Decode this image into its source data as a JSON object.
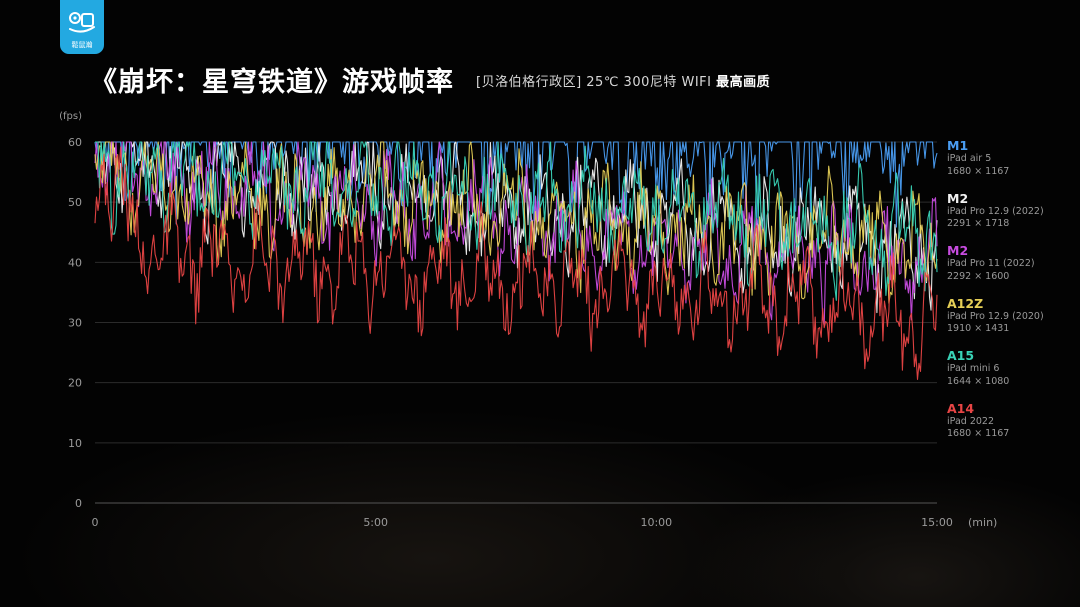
{
  "logo": {
    "text": "鬆鼠瀚"
  },
  "title": "《崩坏：星穹铁道》游戏帧率",
  "subtitle": {
    "main": "[贝洛伯格行政区] 25℃ 300尼特 WIFI",
    "emph": "最高画质"
  },
  "chart_data": {
    "type": "line",
    "title": "《崩坏：星穹铁道》游戏帧率",
    "ylabel": "(fps)",
    "xlabel": "(min)",
    "ylim": [
      0,
      60
    ],
    "xlim": [
      0,
      15
    ],
    "yticks": [
      "0",
      "10",
      "20",
      "30",
      "40",
      "50",
      "60"
    ],
    "xticks": [
      "0",
      "5:00",
      "10:00",
      "15:00"
    ],
    "grid": true,
    "legend_position": "right",
    "series": [
      {
        "name": "M1",
        "device": "iPad air 5",
        "resolution": "1680 × 1167",
        "color": "#4a9df2",
        "x": [
          0,
          1,
          2,
          3,
          4,
          5,
          6,
          7,
          8,
          9,
          10,
          11,
          12,
          13,
          14,
          15
        ],
        "values": [
          60,
          57,
          58,
          59,
          56,
          58,
          57,
          58,
          56,
          58,
          55,
          57,
          56,
          55,
          57,
          58
        ]
      },
      {
        "name": "M2",
        "device": "iPad Pro 12.9 (2022)",
        "resolution": "2291 × 1718",
        "color": "#f2f2f2",
        "x": [
          0,
          1,
          2,
          3,
          4,
          5,
          6,
          7,
          8,
          9,
          10,
          11,
          12,
          13,
          14,
          15
        ],
        "values": [
          59,
          56,
          55,
          54,
          52,
          53,
          50,
          51,
          48,
          49,
          47,
          46,
          44,
          45,
          43,
          42
        ]
      },
      {
        "name": "M2",
        "device": "iPad Pro 11 (2022)",
        "resolution": "2292 × 1600",
        "color": "#c84ce0",
        "x": [
          0,
          1,
          2,
          3,
          4,
          5,
          6,
          7,
          8,
          9,
          10,
          11,
          12,
          13,
          14,
          15
        ],
        "values": [
          58,
          55,
          54,
          52,
          51,
          50,
          49,
          48,
          46,
          45,
          44,
          43,
          42,
          41,
          40,
          40
        ]
      },
      {
        "name": "A12Z",
        "device": "iPad Pro 12.9 (2020)",
        "resolution": "1910 × 1431",
        "color": "#e6cf56",
        "x": [
          0,
          1,
          2,
          3,
          4,
          5,
          6,
          7,
          8,
          9,
          10,
          11,
          12,
          13,
          14,
          15
        ],
        "values": [
          58,
          52,
          51,
          50,
          49,
          52,
          50,
          49,
          48,
          47,
          46,
          45,
          44,
          44,
          43,
          42
        ]
      },
      {
        "name": "A15",
        "device": "iPad mini 6",
        "resolution": "1644 × 1080",
        "color": "#39d3b7",
        "x": [
          0,
          1,
          2,
          3,
          4,
          5,
          6,
          7,
          8,
          9,
          10,
          11,
          12,
          13,
          14,
          15
        ],
        "values": [
          56,
          55,
          55,
          53,
          54,
          52,
          52,
          51,
          50,
          50,
          49,
          48,
          47,
          46,
          45,
          44
        ]
      },
      {
        "name": "A14",
        "device": "iPad 2022",
        "resolution": "1680 × 1167",
        "color": "#e84545",
        "x": [
          0,
          1,
          2,
          3,
          4,
          5,
          6,
          7,
          8,
          9,
          10,
          11,
          12,
          13,
          14,
          15
        ],
        "values": [
          57,
          42,
          41,
          40,
          39,
          40,
          38,
          38,
          37,
          36,
          35,
          35,
          34,
          33,
          31,
          31
        ]
      }
    ]
  }
}
